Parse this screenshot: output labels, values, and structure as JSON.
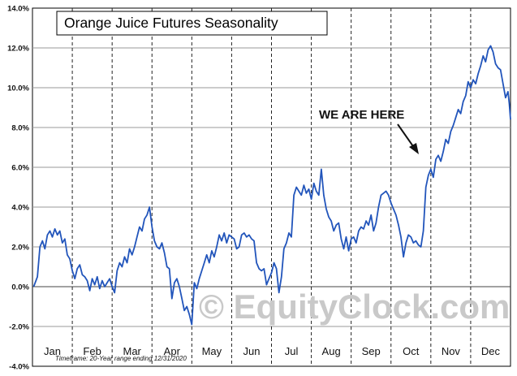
{
  "chart_data": {
    "type": "line",
    "title": "Orange Juice Futures Seasonality",
    "xlabel": "",
    "ylabel": "",
    "ylim": [
      -4.0,
      14.0
    ],
    "yticks": [
      {
        "value": 14,
        "label": "14.0%"
      },
      {
        "value": 12,
        "label": "12.0%"
      },
      {
        "value": 10,
        "label": "10.0%"
      },
      {
        "value": 8,
        "label": "8.0%"
      },
      {
        "value": 6,
        "label": "6.0%"
      },
      {
        "value": 4,
        "label": "4.0%"
      },
      {
        "value": 2,
        "label": "2.0%"
      },
      {
        "value": 0,
        "label": "0.0%"
      },
      {
        "value": -2,
        "label": "-2.0%"
      },
      {
        "value": -4,
        "label": "-4.0%"
      }
    ],
    "months": [
      "Jan",
      "Feb",
      "Mar",
      "Apr",
      "May",
      "Jun",
      "Jul",
      "Aug",
      "Sep",
      "Oct",
      "Nov",
      "Dec"
    ],
    "grid": true,
    "line_color": "#2255bb",
    "x_unit": "day of year",
    "series": [
      {
        "points": [
          [
            1,
            0.0
          ],
          [
            4,
            0.5
          ],
          [
            6,
            2.0
          ],
          [
            8,
            2.3
          ],
          [
            10,
            1.9
          ],
          [
            12,
            2.6
          ],
          [
            14,
            2.8
          ],
          [
            16,
            2.5
          ],
          [
            18,
            2.9
          ],
          [
            20,
            2.6
          ],
          [
            22,
            2.8
          ],
          [
            24,
            2.2
          ],
          [
            26,
            2.4
          ],
          [
            28,
            1.6
          ],
          [
            30,
            1.4
          ],
          [
            32,
            0.8
          ],
          [
            34,
            0.4
          ],
          [
            36,
            0.9
          ],
          [
            38,
            1.1
          ],
          [
            40,
            0.6
          ],
          [
            42,
            0.5
          ],
          [
            44,
            0.3
          ],
          [
            46,
            -0.2
          ],
          [
            48,
            0.4
          ],
          [
            50,
            0.1
          ],
          [
            52,
            0.5
          ],
          [
            54,
            -0.1
          ],
          [
            56,
            0.3
          ],
          [
            58,
            0.0
          ],
          [
            60,
            0.2
          ],
          [
            62,
            0.4
          ],
          [
            64,
            0.0
          ],
          [
            66,
            -0.3
          ],
          [
            68,
            0.8
          ],
          [
            70,
            1.2
          ],
          [
            72,
            1.0
          ],
          [
            74,
            1.5
          ],
          [
            76,
            1.2
          ],
          [
            78,
            1.9
          ],
          [
            80,
            1.6
          ],
          [
            82,
            2.0
          ],
          [
            84,
            2.5
          ],
          [
            86,
            3.0
          ],
          [
            88,
            2.8
          ],
          [
            90,
            3.4
          ],
          [
            92,
            3.6
          ],
          [
            94,
            4.0
          ],
          [
            96,
            3.0
          ],
          [
            98,
            2.3
          ],
          [
            100,
            2.0
          ],
          [
            102,
            1.9
          ],
          [
            104,
            2.2
          ],
          [
            106,
            1.7
          ],
          [
            108,
            1.0
          ],
          [
            110,
            0.9
          ],
          [
            112,
            -0.6
          ],
          [
            114,
            0.2
          ],
          [
            116,
            0.4
          ],
          [
            118,
            0.0
          ],
          [
            120,
            -0.6
          ],
          [
            122,
            -1.2
          ],
          [
            124,
            -1.0
          ],
          [
            126,
            -1.4
          ],
          [
            128,
            -1.9
          ],
          [
            130,
            0.2
          ],
          [
            132,
            -0.1
          ],
          [
            134,
            0.4
          ],
          [
            136,
            0.8
          ],
          [
            138,
            1.2
          ],
          [
            140,
            1.6
          ],
          [
            142,
            1.2
          ],
          [
            144,
            1.8
          ],
          [
            146,
            1.5
          ],
          [
            148,
            2.0
          ],
          [
            150,
            2.6
          ],
          [
            152,
            2.3
          ],
          [
            154,
            2.7
          ],
          [
            156,
            2.2
          ],
          [
            158,
            2.6
          ],
          [
            160,
            2.5
          ],
          [
            162,
            2.4
          ],
          [
            164,
            1.9
          ],
          [
            166,
            2.0
          ],
          [
            168,
            2.6
          ],
          [
            170,
            2.7
          ],
          [
            172,
            2.5
          ],
          [
            174,
            2.6
          ],
          [
            176,
            2.4
          ],
          [
            178,
            2.3
          ],
          [
            180,
            1.2
          ],
          [
            182,
            0.9
          ],
          [
            184,
            0.8
          ],
          [
            186,
            0.9
          ],
          [
            188,
            0.1
          ],
          [
            190,
            0.4
          ],
          [
            192,
            0.7
          ],
          [
            194,
            1.2
          ],
          [
            196,
            0.9
          ],
          [
            198,
            -0.3
          ],
          [
            200,
            0.5
          ],
          [
            202,
            1.9
          ],
          [
            204,
            2.2
          ],
          [
            206,
            2.7
          ],
          [
            208,
            2.5
          ],
          [
            210,
            4.6
          ],
          [
            212,
            5.0
          ],
          [
            214,
            4.8
          ],
          [
            216,
            4.6
          ],
          [
            218,
            5.1
          ],
          [
            220,
            4.7
          ],
          [
            222,
            4.9
          ],
          [
            224,
            4.4
          ],
          [
            226,
            5.2
          ],
          [
            228,
            4.8
          ],
          [
            230,
            4.6
          ],
          [
            232,
            5.9
          ],
          [
            234,
            4.6
          ],
          [
            236,
            3.9
          ],
          [
            238,
            3.5
          ],
          [
            240,
            3.3
          ],
          [
            242,
            2.8
          ],
          [
            244,
            3.1
          ],
          [
            246,
            3.2
          ],
          [
            248,
            2.4
          ],
          [
            250,
            1.9
          ],
          [
            252,
            2.5
          ],
          [
            254,
            1.8
          ],
          [
            256,
            2.4
          ],
          [
            258,
            2.5
          ],
          [
            260,
            2.2
          ],
          [
            262,
            2.8
          ],
          [
            264,
            3.0
          ],
          [
            266,
            2.9
          ],
          [
            268,
            3.3
          ],
          [
            270,
            3.1
          ],
          [
            272,
            3.6
          ],
          [
            274,
            2.8
          ],
          [
            276,
            3.2
          ],
          [
            278,
            4.0
          ],
          [
            280,
            4.6
          ],
          [
            282,
            4.7
          ],
          [
            284,
            4.8
          ],
          [
            286,
            4.6
          ],
          [
            288,
            4.2
          ],
          [
            290,
            3.9
          ],
          [
            292,
            3.6
          ],
          [
            294,
            3.1
          ],
          [
            296,
            2.5
          ],
          [
            298,
            1.5
          ],
          [
            300,
            2.2
          ],
          [
            302,
            2.6
          ],
          [
            304,
            2.5
          ],
          [
            306,
            2.2
          ],
          [
            308,
            2.3
          ],
          [
            310,
            2.1
          ],
          [
            312,
            2.0
          ],
          [
            314,
            2.8
          ],
          [
            316,
            5.0
          ],
          [
            318,
            5.6
          ],
          [
            320,
            5.9
          ],
          [
            322,
            5.5
          ],
          [
            324,
            6.4
          ],
          [
            326,
            6.6
          ],
          [
            328,
            6.3
          ],
          [
            330,
            6.8
          ],
          [
            332,
            7.4
          ],
          [
            334,
            7.2
          ],
          [
            336,
            7.8
          ],
          [
            338,
            8.1
          ],
          [
            340,
            8.5
          ],
          [
            342,
            8.9
          ],
          [
            344,
            8.7
          ],
          [
            346,
            9.3
          ],
          [
            348,
            9.6
          ],
          [
            350,
            10.3
          ],
          [
            352,
            10.0
          ],
          [
            354,
            10.4
          ],
          [
            356,
            10.2
          ],
          [
            358,
            10.7
          ],
          [
            360,
            11.1
          ],
          [
            362,
            11.6
          ],
          [
            364,
            11.3
          ],
          [
            366,
            11.9
          ],
          [
            368,
            12.1
          ],
          [
            370,
            11.8
          ],
          [
            372,
            11.2
          ],
          [
            374,
            11.0
          ],
          [
            376,
            10.9
          ],
          [
            378,
            10.2
          ],
          [
            380,
            9.5
          ],
          [
            382,
            9.8
          ],
          [
            383,
            9.2
          ],
          [
            384,
            8.4
          ]
        ]
      }
    ],
    "annotation": "WE ARE HERE",
    "watermark": "© EquityClock.com",
    "footnote": "Timeframe:  20-Year range ending 12/31/2020"
  }
}
